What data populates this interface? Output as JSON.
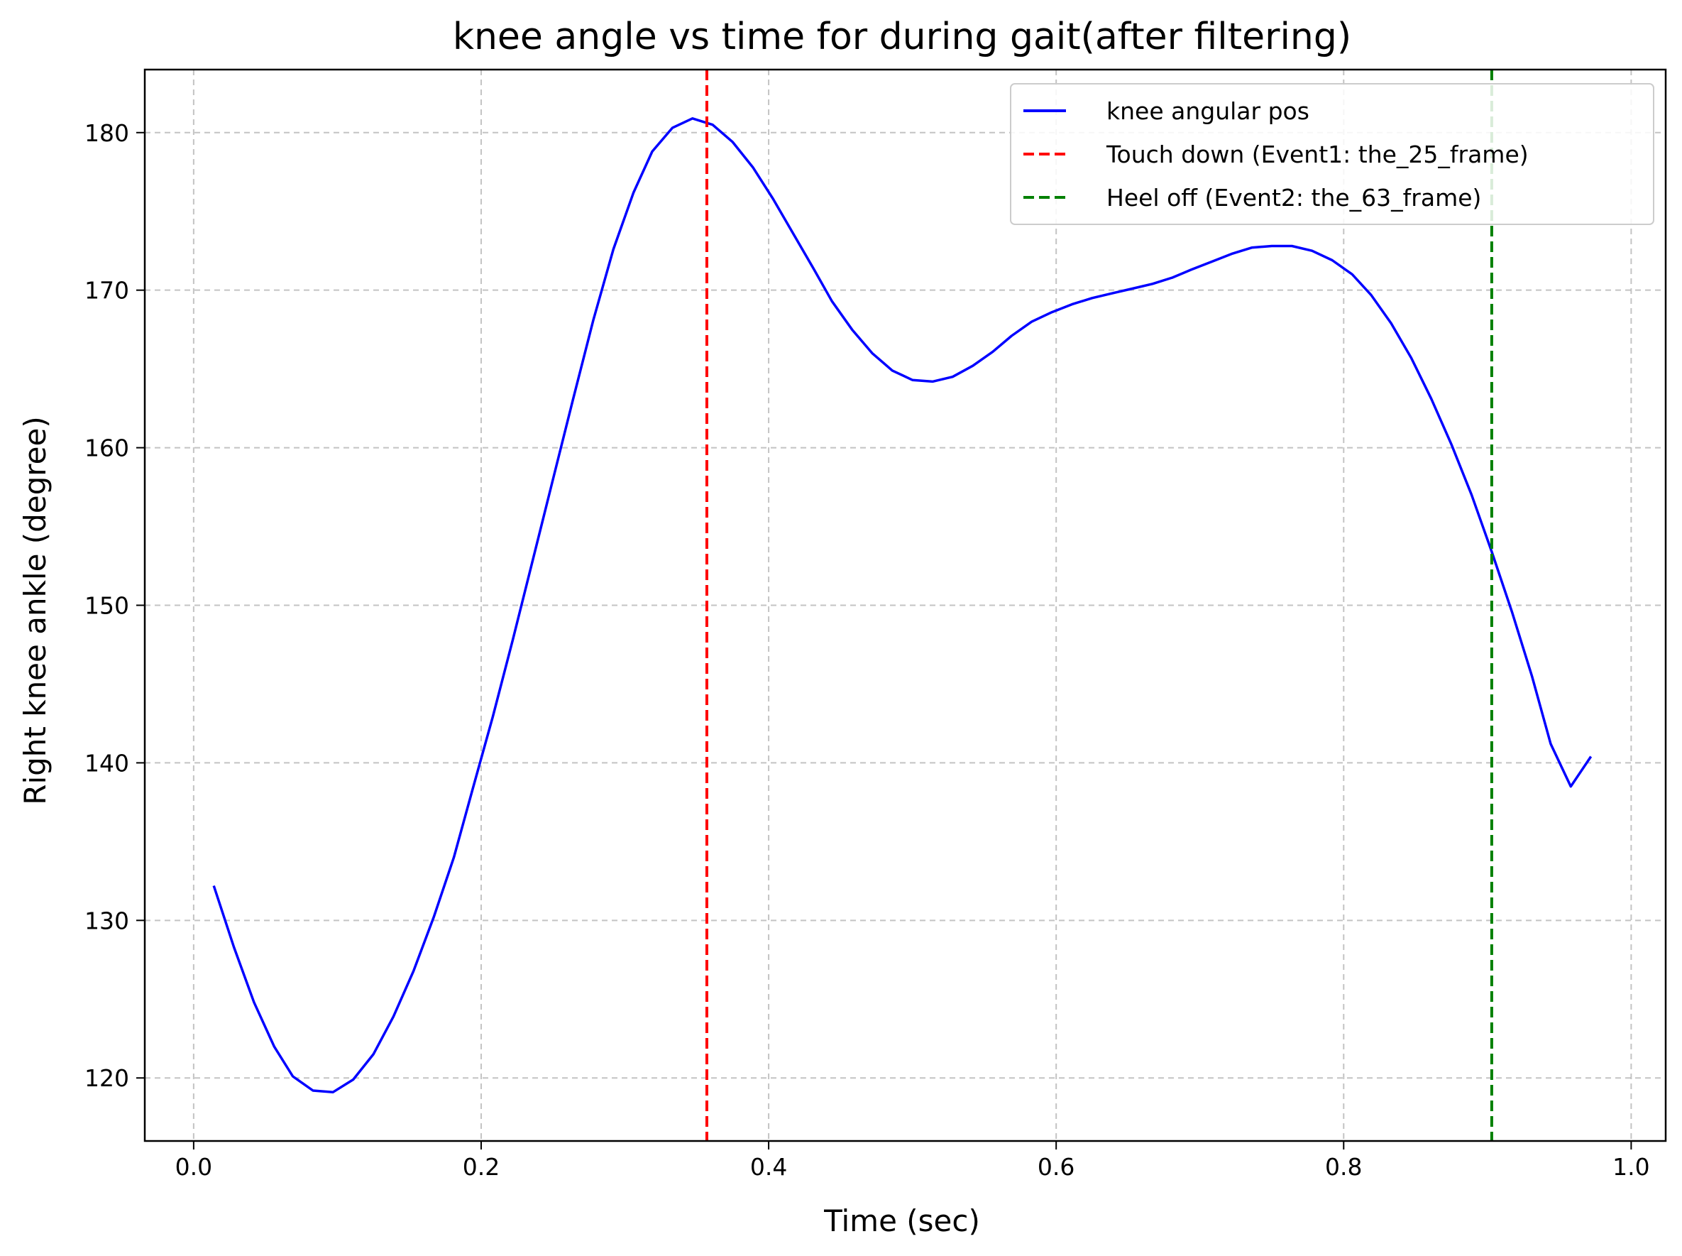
{
  "chart_data": {
    "type": "line",
    "title": "knee angle vs time for during gait(after filtering)",
    "xlabel": "Time (sec)",
    "ylabel": "Right knee ankle (degree)",
    "xlim": [
      -0.034,
      1.024
    ],
    "ylim": [
      116,
      184
    ],
    "xticks": [
      0.0,
      0.2,
      0.4,
      0.6,
      0.8,
      1.0
    ],
    "xtick_labels": [
      "0.0",
      "0.2",
      "0.4",
      "0.6",
      "0.8",
      "1.0"
    ],
    "yticks": [
      120,
      130,
      140,
      150,
      160,
      170,
      180
    ],
    "ytick_labels": [
      "120",
      "130",
      "140",
      "150",
      "160",
      "170",
      "180"
    ],
    "grid": true,
    "legend_position": "top-right",
    "series": [
      {
        "name": "knee angular pos",
        "color": "#0000ff",
        "style": "solid",
        "x": [
          0.014,
          0.028,
          0.042,
          0.056,
          0.069,
          0.083,
          0.097,
          0.111,
          0.125,
          0.139,
          0.153,
          0.167,
          0.181,
          0.194,
          0.208,
          0.222,
          0.236,
          0.25,
          0.264,
          0.278,
          0.292,
          0.306,
          0.319,
          0.333,
          0.347,
          0.361,
          0.375,
          0.389,
          0.403,
          0.417,
          0.431,
          0.444,
          0.458,
          0.472,
          0.486,
          0.5,
          0.514,
          0.528,
          0.542,
          0.556,
          0.569,
          0.583,
          0.597,
          0.611,
          0.625,
          0.639,
          0.653,
          0.667,
          0.681,
          0.694,
          0.708,
          0.722,
          0.736,
          0.75,
          0.764,
          0.778,
          0.792,
          0.806,
          0.819,
          0.833,
          0.847,
          0.861,
          0.875,
          0.889,
          0.903,
          0.917,
          0.931,
          0.944,
          0.958,
          0.972
        ],
        "values": [
          132.2,
          128.3,
          124.8,
          122.0,
          120.1,
          119.2,
          119.1,
          119.9,
          121.5,
          123.9,
          126.8,
          130.2,
          134.0,
          138.3,
          142.9,
          147.8,
          152.9,
          158.0,
          163.1,
          168.1,
          172.6,
          176.2,
          178.8,
          180.3,
          180.9,
          180.5,
          179.4,
          177.8,
          175.8,
          173.6,
          171.4,
          169.3,
          167.5,
          166.0,
          164.9,
          164.3,
          164.2,
          164.5,
          165.2,
          166.1,
          167.1,
          168.0,
          168.6,
          169.1,
          169.5,
          169.8,
          170.1,
          170.4,
          170.8,
          171.3,
          171.8,
          172.3,
          172.7,
          172.8,
          172.8,
          172.5,
          171.9,
          171.0,
          169.7,
          167.9,
          165.7,
          163.1,
          160.2,
          157.0,
          153.4,
          149.6,
          145.5,
          141.2,
          138.5,
          140.4
        ]
      },
      {
        "name": "Touch down (Event1: the_25_frame)",
        "color": "#ff0000",
        "style": "dashed",
        "x_value": 0.357
      },
      {
        "name": "Heel off (Event2: the_63_frame)",
        "color": "#008000",
        "style": "dashed",
        "x_value": 0.903
      }
    ]
  }
}
